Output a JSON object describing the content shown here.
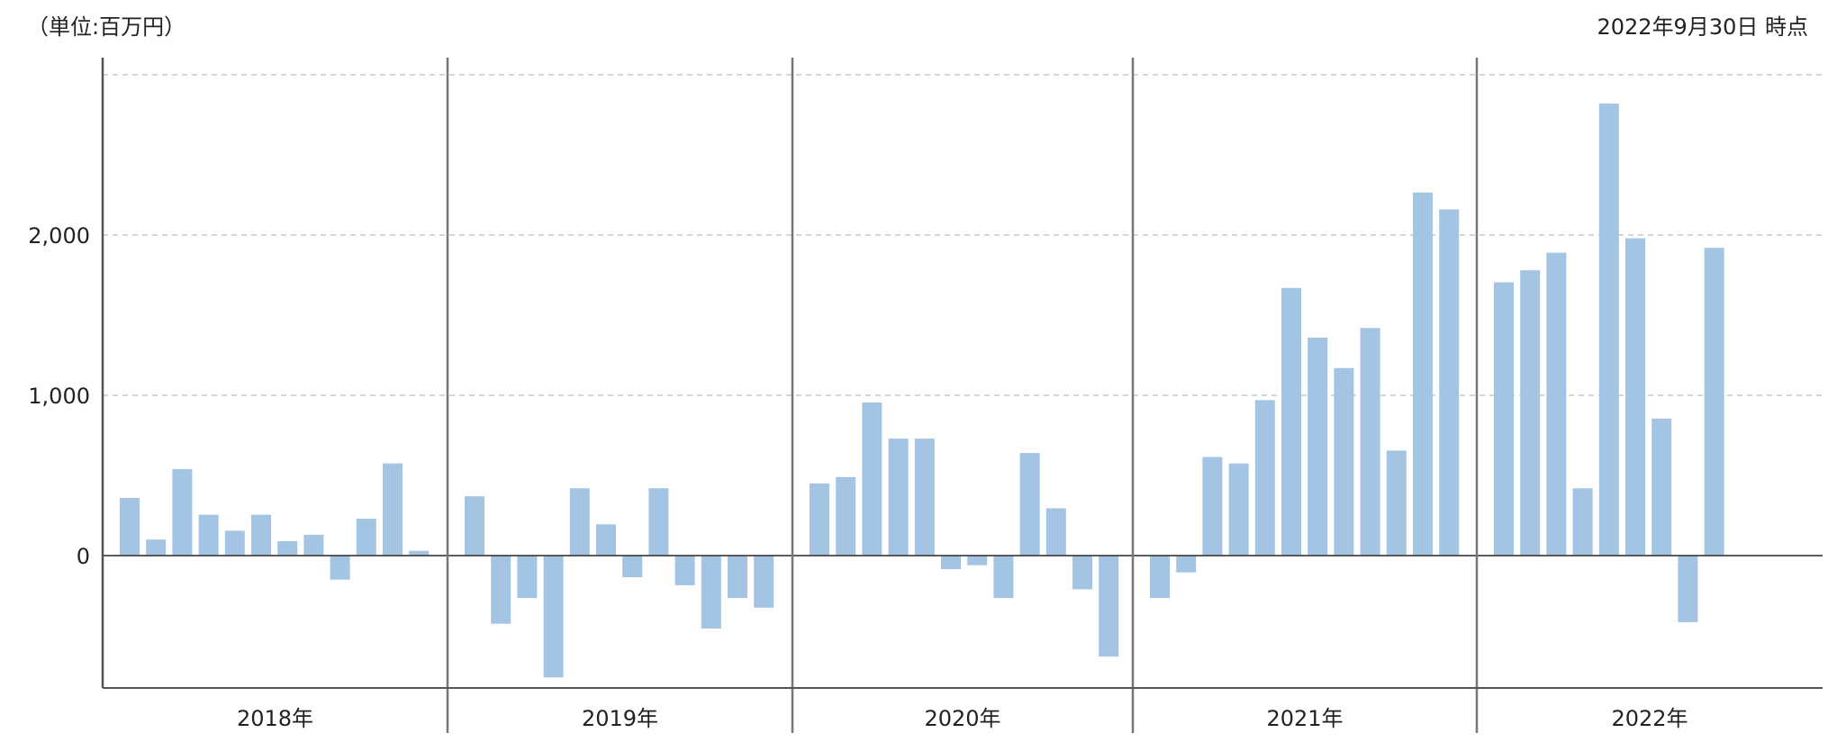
{
  "header": {
    "unit_label": "（単位:百万円）",
    "as_of_label": "2022年9月30日 時点"
  },
  "colors": {
    "bar": "#a4c4e3",
    "gridline": "#c8c8c8",
    "axis": "#555555",
    "zero_line": "#444444",
    "divider": "#777777"
  },
  "chart_data": {
    "type": "bar",
    "ylim": [
      -850,
      3000
    ],
    "yticks": [
      0,
      1000,
      2000
    ],
    "ytick_labels": [
      "0",
      "1,000",
      "2,000"
    ],
    "grid": "horizontal dashed",
    "groups": [
      {
        "label": "2018年",
        "values": [
          360,
          100,
          540,
          255,
          155,
          255,
          90,
          130,
          -150,
          230,
          575,
          30
        ]
      },
      {
        "label": "2019年",
        "values": [
          370,
          -425,
          -265,
          -760,
          420,
          195,
          -135,
          420,
          -185,
          -455,
          -265,
          -325
        ]
      },
      {
        "label": "2020年",
        "values": [
          450,
          490,
          955,
          730,
          730,
          -85,
          -60,
          -265,
          640,
          295,
          -210,
          -630
        ]
      },
      {
        "label": "2021年",
        "values": [
          -265,
          -105,
          615,
          575,
          970,
          1670,
          1360,
          1170,
          1420,
          655,
          2265,
          2160
        ]
      },
      {
        "label": "2022年",
        "values": [
          1705,
          1780,
          1890,
          420,
          2820,
          1980,
          855,
          -415,
          1920
        ]
      }
    ]
  }
}
